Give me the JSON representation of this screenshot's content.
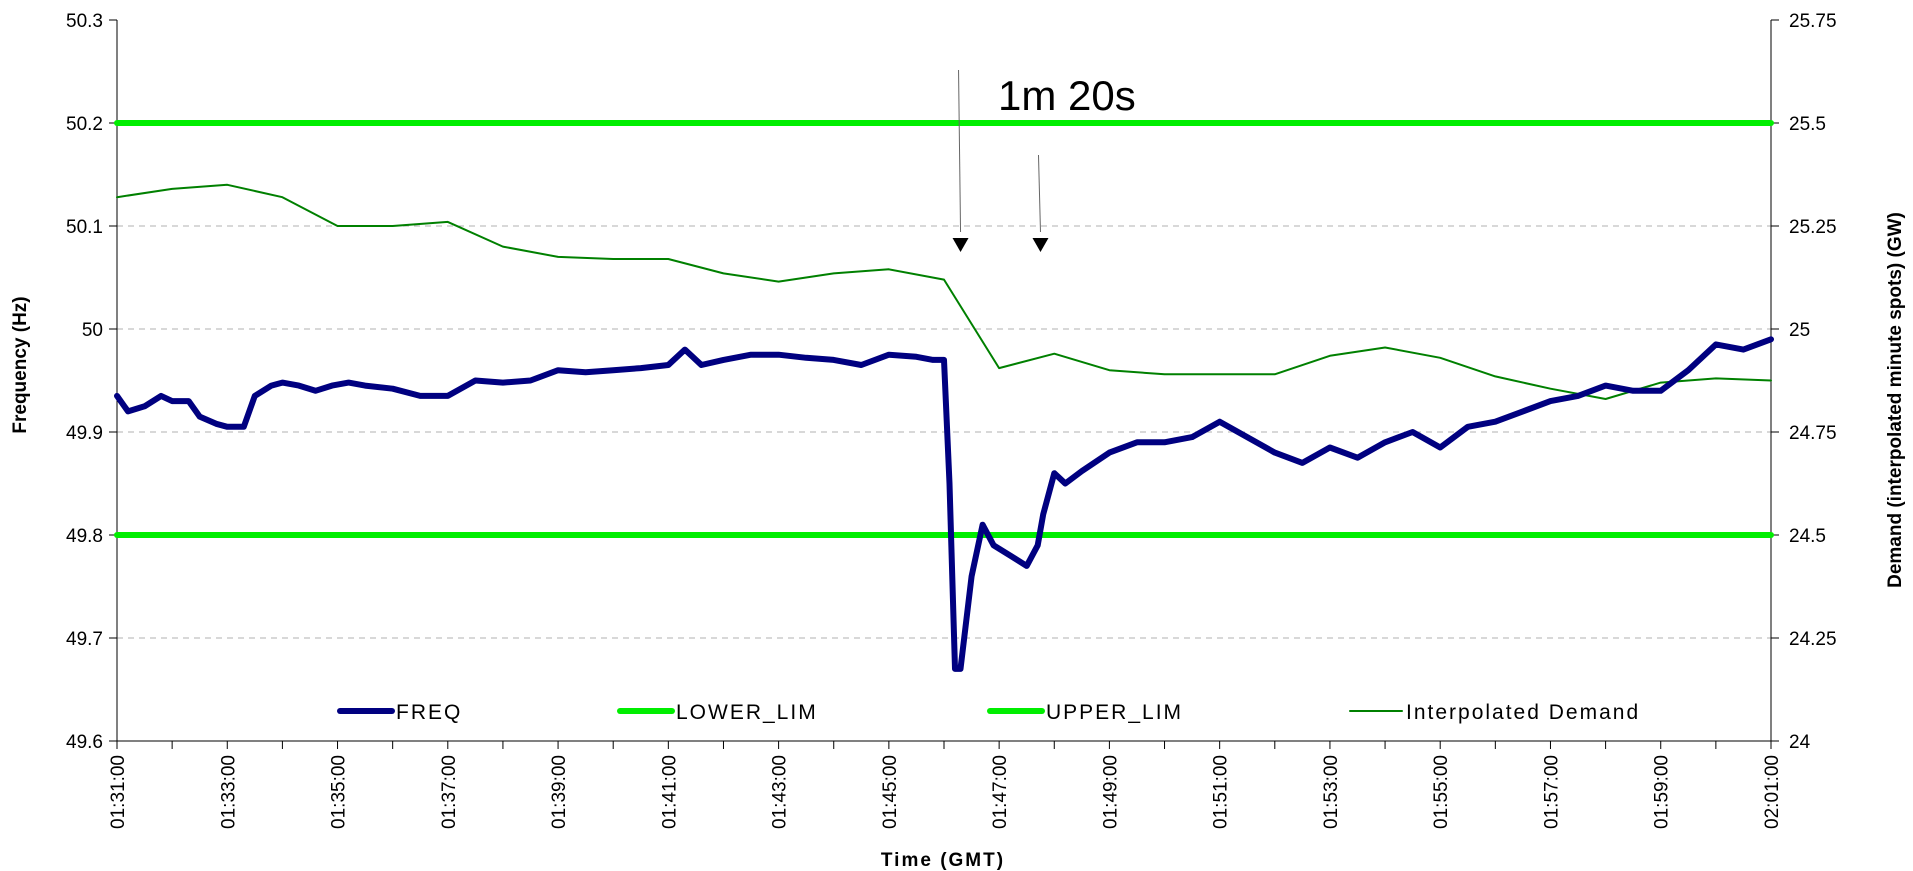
{
  "chart_data": {
    "type": "line",
    "xlabel": "Time (GMT)",
    "ylabel": "Frequency (Hz)",
    "y2label": "Demand (interpolated minute spots) (GW)",
    "annotation": "1m 20s",
    "xlim": [
      91,
      121
    ],
    "ylim": [
      49.6,
      50.3
    ],
    "y2lim": [
      24,
      25.75
    ],
    "x_tick_labels": [
      "01:31:00",
      "01:33:00",
      "01:35:00",
      "01:37:00",
      "01:39:00",
      "01:41:00",
      "01:43:00",
      "01:45:00",
      "01:47:00",
      "01:49:00",
      "01:51:00",
      "01:53:00",
      "01:55:00",
      "01:57:00",
      "01:59:00",
      "02:01:00"
    ],
    "y_ticks": [
      "49.6",
      "49.7",
      "49.8",
      "49.9",
      "50",
      "50.1",
      "50.2",
      "50.3"
    ],
    "y2_ticks": [
      "24",
      "24.25",
      "24.5",
      "24.75",
      "25",
      "25.25",
      "25.5",
      "25.75"
    ],
    "grid": "horizontal dashed",
    "legend_position": "bottom",
    "arrows_at_minutes": [
      106.3,
      107.75
    ],
    "colors": {
      "freq": "#000080",
      "limits": "#00ee00",
      "demand": "#008000",
      "grid": "#b0b0b0"
    },
    "series": [
      {
        "name": "FREQ",
        "axis": "left",
        "x": [
          91,
          91.2,
          91.5,
          91.8,
          92,
          92.3,
          92.5,
          92.8,
          93,
          93.3,
          93.5,
          93.8,
          94,
          94.3,
          94.6,
          94.9,
          95.2,
          95.5,
          96,
          96.5,
          97,
          97.5,
          98,
          98.5,
          99,
          99.5,
          100,
          100.5,
          101,
          101.3,
          101.6,
          102,
          102.5,
          103,
          103.5,
          104,
          104.5,
          105,
          105.5,
          105.8,
          106,
          106.1,
          106.2,
          106.3,
          106.5,
          106.7,
          106.9,
          107.2,
          107.5,
          107.7,
          107.8,
          108,
          108.2,
          108.5,
          109,
          109.5,
          110,
          110.5,
          111,
          111.5,
          112,
          112.5,
          113,
          113.5,
          114,
          114.5,
          115,
          115.5,
          116,
          116.5,
          117,
          117.5,
          118,
          118.5,
          119,
          119.5,
          120,
          120.5,
          121
        ],
        "y": [
          49.935,
          49.92,
          49.925,
          49.935,
          49.93,
          49.93,
          49.915,
          49.908,
          49.905,
          49.905,
          49.935,
          49.945,
          49.948,
          49.945,
          49.94,
          49.945,
          49.948,
          49.945,
          49.942,
          49.935,
          49.935,
          49.95,
          49.948,
          49.95,
          49.96,
          49.958,
          49.96,
          49.962,
          49.965,
          49.98,
          49.965,
          49.97,
          49.975,
          49.975,
          49.972,
          49.97,
          49.965,
          49.975,
          49.973,
          49.97,
          49.97,
          49.85,
          49.67,
          49.67,
          49.76,
          49.81,
          49.79,
          49.78,
          49.77,
          49.79,
          49.82,
          49.86,
          49.85,
          49.862,
          49.88,
          49.89,
          49.89,
          49.895,
          49.91,
          49.895,
          49.88,
          49.87,
          49.885,
          49.875,
          49.89,
          49.9,
          49.885,
          49.905,
          49.91,
          49.92,
          49.93,
          49.935,
          49.945,
          49.94,
          49.94,
          49.96,
          49.985,
          49.98,
          49.99
        ]
      },
      {
        "name": "LOWER_LIM",
        "axis": "left",
        "x": [
          91,
          121
        ],
        "y": [
          49.8,
          49.8
        ]
      },
      {
        "name": "UPPER_LIM",
        "axis": "left",
        "x": [
          91,
          121
        ],
        "y": [
          50.2,
          50.2
        ]
      },
      {
        "name": "Interpolated Demand",
        "axis": "right",
        "x": [
          91,
          92,
          93,
          94,
          95,
          96,
          97,
          98,
          99,
          100,
          101,
          102,
          103,
          104,
          105,
          106,
          107,
          108,
          109,
          110,
          111,
          112,
          113,
          114,
          115,
          116,
          117,
          118,
          119,
          120,
          121
        ],
        "y": [
          25.32,
          25.34,
          25.35,
          25.32,
          25.25,
          25.25,
          25.26,
          25.2,
          25.175,
          25.17,
          25.17,
          25.135,
          25.115,
          25.135,
          25.145,
          25.12,
          24.905,
          24.94,
          24.9,
          24.89,
          24.89,
          24.89,
          24.935,
          24.955,
          24.93,
          24.885,
          24.855,
          24.83,
          24.87,
          24.88,
          24.875
        ]
      }
    ]
  }
}
